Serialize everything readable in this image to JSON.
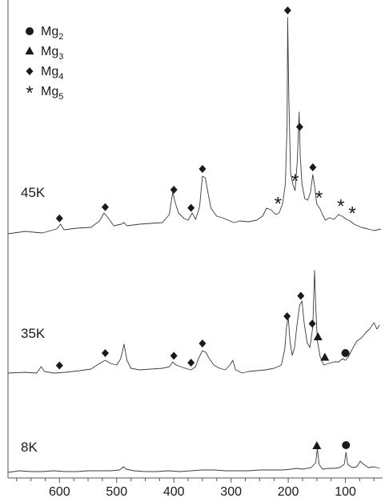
{
  "chart_data": {
    "type": "line",
    "title": "",
    "xlabel": "",
    "ylabel": "",
    "x_reversed": true,
    "xlim": [
      690,
      35
    ],
    "xticks": [
      600,
      500,
      400,
      300,
      200,
      100
    ],
    "legend": {
      "placement": "top-left",
      "entries": [
        {
          "symbol": "circle",
          "base": "Mg",
          "sub": "2"
        },
        {
          "symbol": "triangle",
          "base": "Mg",
          "sub": "3"
        },
        {
          "symbol": "diamond",
          "base": "Mg",
          "sub": "4"
        },
        {
          "symbol": "star",
          "base": "Mg",
          "sub": "5"
        }
      ]
    },
    "series": [
      {
        "name": "45K",
        "baseline": 290,
        "points": [
          [
            690,
            -2
          ],
          [
            660,
            1
          ],
          [
            630,
            -1
          ],
          [
            605,
            4
          ],
          [
            598,
            10
          ],
          [
            592,
            3
          ],
          [
            570,
            5
          ],
          [
            545,
            6
          ],
          [
            530,
            14
          ],
          [
            522,
            24
          ],
          [
            515,
            18
          ],
          [
            505,
            8
          ],
          [
            492,
            10
          ],
          [
            487,
            12
          ],
          [
            482,
            8
          ],
          [
            460,
            10
          ],
          [
            440,
            11
          ],
          [
            420,
            12
          ],
          [
            408,
            22
          ],
          [
            402,
            50
          ],
          [
            398,
            38
          ],
          [
            392,
            24
          ],
          [
            382,
            17
          ],
          [
            375,
            15
          ],
          [
            368,
            24
          ],
          [
            362,
            16
          ],
          [
            355,
            32
          ],
          [
            350,
            70
          ],
          [
            345,
            68
          ],
          [
            340,
            48
          ],
          [
            335,
            30
          ],
          [
            325,
            20
          ],
          [
            315,
            18
          ],
          [
            305,
            15
          ],
          [
            295,
            12
          ],
          [
            285,
            14
          ],
          [
            270,
            13
          ],
          [
            255,
            15
          ],
          [
            245,
            20
          ],
          [
            238,
            30
          ],
          [
            230,
            28
          ],
          [
            222,
            22
          ],
          [
            216,
            24
          ],
          [
            210,
            35
          ],
          [
            205,
            60
          ],
          [
            202,
            135
          ],
          [
            201,
            268
          ],
          [
            199,
            170
          ],
          [
            196,
            75
          ],
          [
            192,
            60
          ],
          [
            188,
            52
          ],
          [
            184,
            90
          ],
          [
            181,
            150
          ],
          [
            179,
            95
          ],
          [
            176,
            60
          ],
          [
            171,
            42
          ],
          [
            166,
            40
          ],
          [
            161,
            50
          ],
          [
            157,
            72
          ],
          [
            154,
            58
          ],
          [
            150,
            35
          ],
          [
            145,
            30
          ],
          [
            140,
            22
          ],
          [
            135,
            15
          ],
          [
            128,
            18
          ],
          [
            120,
            16
          ],
          [
            112,
            22
          ],
          [
            106,
            20
          ],
          [
            98,
            16
          ],
          [
            92,
            14
          ],
          [
            85,
            10
          ],
          [
            72,
            6
          ],
          [
            60,
            4
          ],
          [
            50,
            2
          ],
          [
            38,
            4
          ]
        ]
      },
      {
        "name": "35K",
        "baseline": 466,
        "points": [
          [
            690,
            0
          ],
          [
            660,
            1
          ],
          [
            640,
            0
          ],
          [
            632,
            8
          ],
          [
            626,
            2
          ],
          [
            610,
            0
          ],
          [
            590,
            1
          ],
          [
            565,
            3
          ],
          [
            545,
            5
          ],
          [
            530,
            12
          ],
          [
            520,
            16
          ],
          [
            510,
            12
          ],
          [
            500,
            10
          ],
          [
            493,
            18
          ],
          [
            487,
            36
          ],
          [
            482,
            16
          ],
          [
            475,
            6
          ],
          [
            460,
            4
          ],
          [
            440,
            5
          ],
          [
            420,
            6
          ],
          [
            408,
            8
          ],
          [
            402,
            14
          ],
          [
            396,
            10
          ],
          [
            380,
            6
          ],
          [
            370,
            4
          ],
          [
            362,
            8
          ],
          [
            357,
            18
          ],
          [
            350,
            28
          ],
          [
            344,
            26
          ],
          [
            338,
            18
          ],
          [
            330,
            10
          ],
          [
            320,
            6
          ],
          [
            310,
            4
          ],
          [
            302,
            10
          ],
          [
            297,
            16
          ],
          [
            292,
            4
          ],
          [
            280,
            0
          ],
          [
            270,
            2
          ],
          [
            255,
            3
          ],
          [
            240,
            4
          ],
          [
            225,
            6
          ],
          [
            212,
            10
          ],
          [
            206,
            30
          ],
          [
            203,
            58
          ],
          [
            200,
            70
          ],
          [
            197,
            40
          ],
          [
            193,
            22
          ],
          [
            189,
            32
          ],
          [
            185,
            58
          ],
          [
            180,
            85
          ],
          [
            176,
            90
          ],
          [
            172,
            62
          ],
          [
            167,
            38
          ],
          [
            162,
            32
          ],
          [
            157,
            58
          ],
          [
            154,
            128
          ],
          [
            152,
            85
          ],
          [
            149,
            40
          ],
          [
            144,
            20
          ],
          [
            138,
            10
          ],
          [
            130,
            12
          ],
          [
            120,
            14
          ],
          [
            112,
            14
          ],
          [
            105,
            18
          ],
          [
            100,
            16
          ],
          [
            95,
            20
          ],
          [
            88,
            30
          ],
          [
            80,
            40
          ],
          [
            72,
            44
          ],
          [
            65,
            50
          ],
          [
            58,
            55
          ],
          [
            50,
            63
          ],
          [
            45,
            55
          ],
          [
            40,
            60
          ]
        ]
      },
      {
        "name": "8K",
        "baseline": 590,
        "points": [
          [
            690,
            0
          ],
          [
            670,
            2
          ],
          [
            650,
            1
          ],
          [
            630,
            1
          ],
          [
            610,
            2
          ],
          [
            590,
            1
          ],
          [
            570,
            1
          ],
          [
            550,
            2
          ],
          [
            530,
            2
          ],
          [
            510,
            2
          ],
          [
            495,
            3
          ],
          [
            488,
            7
          ],
          [
            483,
            4
          ],
          [
            470,
            2
          ],
          [
            450,
            1
          ],
          [
            430,
            1
          ],
          [
            410,
            2
          ],
          [
            390,
            1
          ],
          [
            370,
            2
          ],
          [
            350,
            3
          ],
          [
            330,
            3
          ],
          [
            310,
            2
          ],
          [
            290,
            2
          ],
          [
            270,
            2
          ],
          [
            250,
            3
          ],
          [
            230,
            3
          ],
          [
            210,
            3
          ],
          [
            195,
            4
          ],
          [
            185,
            5
          ],
          [
            175,
            4
          ],
          [
            160,
            6
          ],
          [
            152,
            12
          ],
          [
            149,
            30
          ],
          [
            146,
            10
          ],
          [
            140,
            4
          ],
          [
            130,
            5
          ],
          [
            120,
            5
          ],
          [
            110,
            6
          ],
          [
            102,
            10
          ],
          [
            99,
            25
          ],
          [
            96,
            10
          ],
          [
            88,
            6
          ],
          [
            80,
            7
          ],
          [
            74,
            14
          ],
          [
            68,
            10
          ],
          [
            60,
            6
          ],
          [
            50,
            7
          ],
          [
            40,
            5
          ]
        ]
      }
    ],
    "peak_markers": [
      {
        "series": "45K",
        "symbol": "diamond",
        "x": 600
      },
      {
        "series": "45K",
        "symbol": "diamond",
        "x": 520
      },
      {
        "series": "45K",
        "symbol": "diamond",
        "x": 400
      },
      {
        "series": "45K",
        "symbol": "diamond",
        "x": 370
      },
      {
        "series": "45K",
        "symbol": "diamond",
        "x": 350
      },
      {
        "series": "45K",
        "symbol": "diamond",
        "x": 201
      },
      {
        "series": "45K",
        "symbol": "diamond",
        "x": 180
      },
      {
        "series": "45K",
        "symbol": "diamond",
        "x": 157
      },
      {
        "series": "45K",
        "symbol": "star",
        "x": 218
      },
      {
        "series": "45K",
        "symbol": "star",
        "x": 188
      },
      {
        "series": "45K",
        "symbol": "star",
        "x": 146
      },
      {
        "series": "45K",
        "symbol": "star",
        "x": 108
      },
      {
        "series": "45K",
        "symbol": "star",
        "x": 88
      },
      {
        "series": "35K",
        "symbol": "diamond",
        "x": 600
      },
      {
        "series": "35K",
        "symbol": "diamond",
        "x": 520
      },
      {
        "series": "35K",
        "symbol": "diamond",
        "x": 400
      },
      {
        "series": "35K",
        "symbol": "diamond",
        "x": 370
      },
      {
        "series": "35K",
        "symbol": "diamond",
        "x": 350
      },
      {
        "series": "35K",
        "symbol": "diamond",
        "x": 202
      },
      {
        "series": "35K",
        "symbol": "diamond",
        "x": 178
      },
      {
        "series": "35K",
        "symbol": "diamond",
        "x": 158
      },
      {
        "series": "35K",
        "symbol": "triangle",
        "x": 148
      },
      {
        "series": "35K",
        "symbol": "triangle",
        "x": 136
      },
      {
        "series": "35K",
        "symbol": "circle",
        "x": 100
      },
      {
        "series": "8K",
        "symbol": "triangle",
        "x": 150
      },
      {
        "series": "8K",
        "symbol": "circle",
        "x": 99
      }
    ]
  }
}
